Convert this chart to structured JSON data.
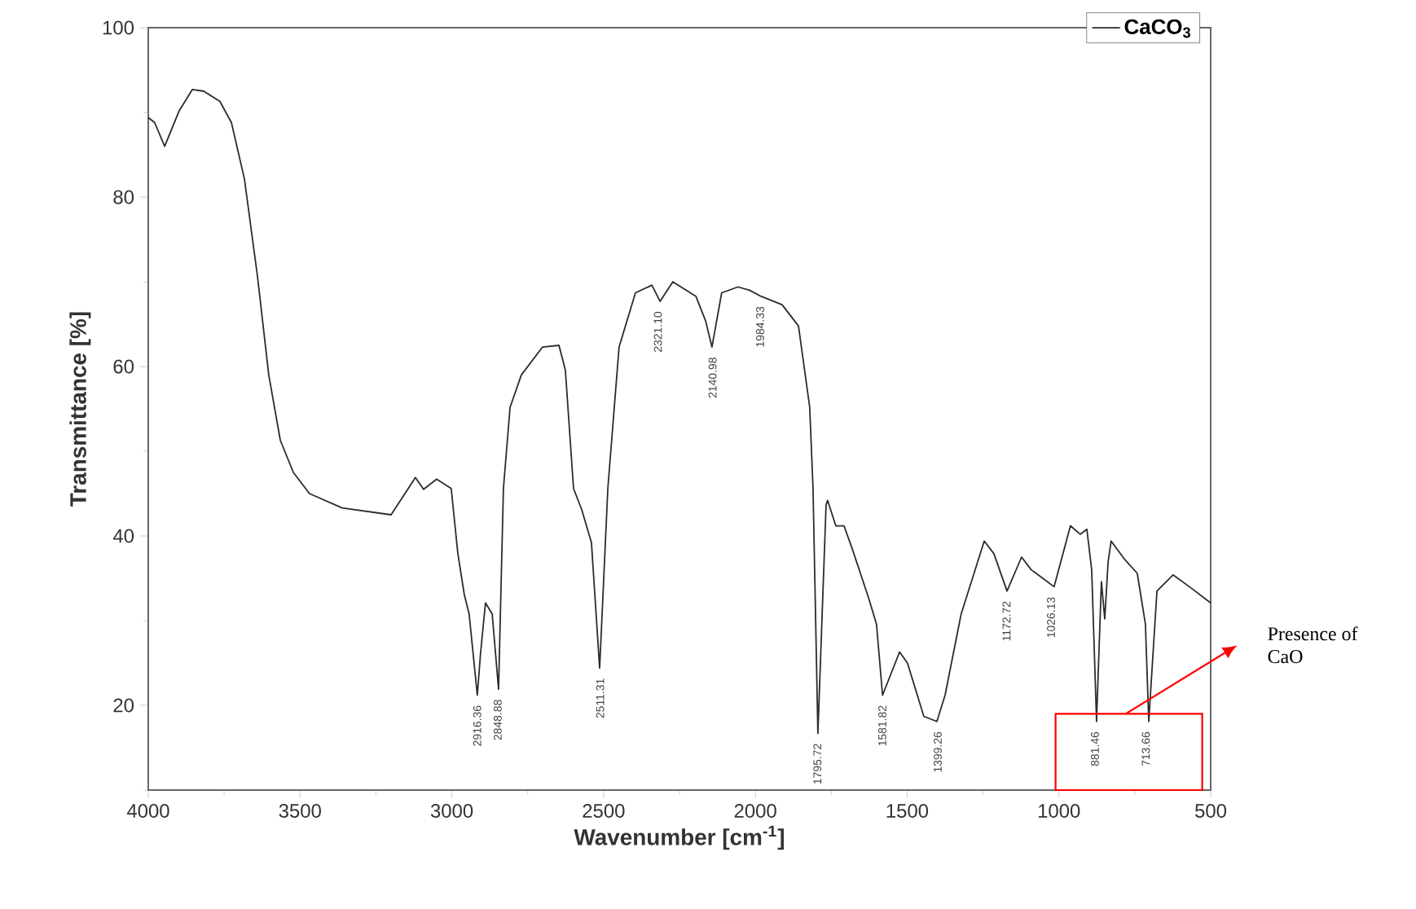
{
  "chart_data": {
    "type": "line",
    "xlabel": "Wavenumber [cm$^{-1}$]",
    "ylabel": "Transmittance [%]",
    "xlim": [
      4000,
      500
    ],
    "ylim": [
      10,
      100
    ],
    "xticks": [
      4000,
      {
        "value": 3750,
        "label": null
      },
      3500,
      {
        "value": 3250,
        "label": null
      },
      3000,
      {
        "value": 2750,
        "label": null
      },
      2500,
      {
        "value": 2250,
        "label": null
      },
      2000,
      {
        "value": 1750,
        "label": null
      },
      1500,
      {
        "value": 1250,
        "label": null
      },
      1000,
      {
        "value": 750,
        "label": null
      },
      500
    ],
    "yticks": [
      {
        "value": 10,
        "label": null
      },
      20,
      {
        "value": 30,
        "label": null
      },
      40,
      {
        "value": 50,
        "label": null
      },
      60,
      {
        "value": 70,
        "label": null
      },
      80,
      {
        "value": 90,
        "label": null
      },
      100
    ],
    "legend": "top right",
    "grid": false,
    "marker": "none",
    "line_style": "solid",
    "series": [
      {
        "name": "CaCO$_{3}$",
        "color": "#2b2b2b",
        "x": [
          4000,
          3979,
          3946,
          3898,
          3855,
          3817,
          3764,
          3726,
          3683,
          3640,
          3603,
          3565,
          3522,
          3469,
          3361,
          3200,
          3120,
          3093,
          3050,
          3002,
          2980,
          2959,
          2943,
          2916,
          2905,
          2889,
          2867,
          2846,
          2830,
          2808,
          2771,
          2701,
          2647,
          2626,
          2599,
          2572,
          2540,
          2513,
          2486,
          2449,
          2395,
          2341,
          2314,
          2272,
          2196,
          2164,
          2143,
          2111,
          2057,
          2019,
          1982,
          1912,
          1858,
          1821,
          1810,
          1794,
          1767,
          1762,
          1735,
          1708,
          1681,
          1627,
          1601,
          1581,
          1525,
          1499,
          1445,
          1402,
          1375,
          1322,
          1246,
          1214,
          1171,
          1123,
          1091,
          1053,
          1016,
          962,
          930,
          908,
          892,
          876,
          860,
          849,
          838,
          828,
          785,
          742,
          715,
          704,
          677,
          624,
          570,
          500
        ],
        "values": [
          89.4,
          88.8,
          86.0,
          90.2,
          92.7,
          92.5,
          91.3,
          88.8,
          82.1,
          70.6,
          59.0,
          51.3,
          47.5,
          45.0,
          43.3,
          42.5,
          46.9,
          45.5,
          46.7,
          45.6,
          37.9,
          33.1,
          30.8,
          21.2,
          26.3,
          32.1,
          30.8,
          21.9,
          45.6,
          55.2,
          59.0,
          62.3,
          62.5,
          59.6,
          45.6,
          43.1,
          39.2,
          24.4,
          45.6,
          62.3,
          68.7,
          69.6,
          67.7,
          70.0,
          68.3,
          65.4,
          62.3,
          68.7,
          69.4,
          69.0,
          68.3,
          67.3,
          64.8,
          55.2,
          45.6,
          16.7,
          43.7,
          44.2,
          41.2,
          41.2,
          38.5,
          32.7,
          29.6,
          21.2,
          26.3,
          25.0,
          18.7,
          18.1,
          21.2,
          30.8,
          39.4,
          37.9,
          33.5,
          37.5,
          36.0,
          35.0,
          34.0,
          41.2,
          40.2,
          40.8,
          36.0,
          18.1,
          34.6,
          30.2,
          36.9,
          39.4,
          37.3,
          35.6,
          29.6,
          18.1,
          33.5,
          35.4,
          34.0,
          32.1
        ]
      }
    ],
    "annotations": [
      {
        "text": "2916.36",
        "x": 2916.36,
        "y": 21.2
      },
      {
        "text": "2848.88",
        "x": 2848.88,
        "y": 21.9
      },
      {
        "text": "2511.31",
        "x": 2511.31,
        "y": 24.4
      },
      {
        "text": "2321.10",
        "x": 2321.1,
        "y": 67.7
      },
      {
        "text": "2140.98",
        "x": 2140.98,
        "y": 62.3
      },
      {
        "text": "1984.33",
        "x": 1984.33,
        "y": 68.3
      },
      {
        "text": "1795.72",
        "x": 1795.72,
        "y": 16.7
      },
      {
        "text": "1581.82",
        "x": 1581.82,
        "y": 21.2
      },
      {
        "text": "1399.26",
        "x": 1399.26,
        "y": 18.1
      },
      {
        "text": "1172.72",
        "x": 1172.72,
        "y": 33.5
      },
      {
        "text": "1026.13",
        "x": 1026.13,
        "y": 34.0
      },
      {
        "text": "881.46",
        "x": 881.46,
        "y": 18.1
      },
      {
        "text": "713.66",
        "x": 713.66,
        "y": 18.1
      },
      "Presence of CaO"
    ]
  }
}
